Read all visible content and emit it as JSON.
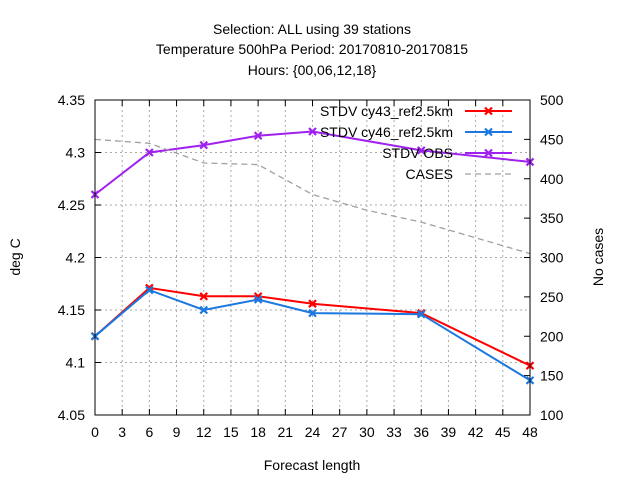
{
  "chart_data": {
    "type": "line",
    "title_lines": [
      "Selection: ALL using    39 stations",
      "Temperature 500hPa   Period: 20170810-20170815",
      "Hours: {00,06,12,18}"
    ],
    "xlabel": "Forecast length",
    "ylabel": "deg C",
    "y2label": "No cases",
    "xlim": [
      0,
      48
    ],
    "ylim": [
      4.05,
      4.35
    ],
    "y2lim": [
      100,
      500
    ],
    "x_ticks": [
      "0",
      "3",
      "6",
      "9",
      "12",
      "15",
      "18",
      "21",
      "24",
      "27",
      "30",
      "33",
      "36",
      "39",
      "42",
      "45",
      "48"
    ],
    "y_ticks": [
      "4.05",
      "4.1",
      "4.15",
      "4.2",
      "4.25",
      "4.3",
      "4.35"
    ],
    "y2_ticks": [
      "100",
      "150",
      "200",
      "250",
      "300",
      "350",
      "400",
      "450",
      "500"
    ],
    "grid": true,
    "legend_position": "top-right",
    "series": [
      {
        "name": "STDV cy43_ref2.5km",
        "color": "#ff0000",
        "axis": "y",
        "marker": "x",
        "x": [
          0,
          6,
          12,
          18,
          24,
          36,
          48
        ],
        "y": [
          4.125,
          4.171,
          4.163,
          4.163,
          4.156,
          4.147,
          4.097
        ]
      },
      {
        "name": "STDV cy46_ref2.5km",
        "color": "#1a78e0",
        "axis": "y",
        "marker": "x",
        "x": [
          0,
          6,
          12,
          18,
          24,
          36,
          48
        ],
        "y": [
          4.125,
          4.169,
          4.15,
          4.16,
          4.147,
          4.146,
          4.083
        ]
      },
      {
        "name": "STDV OBS",
        "color": "#a020f0",
        "axis": "y",
        "marker": "x",
        "x": [
          0,
          6,
          12,
          18,
          24,
          36,
          48
        ],
        "y": [
          4.26,
          4.3,
          4.307,
          4.316,
          4.32,
          4.302,
          4.291
        ]
      },
      {
        "name": "CASES",
        "color": "#a0a0a0",
        "axis": "y2",
        "marker": "none",
        "dashed": true,
        "x": [
          0,
          6,
          12,
          18,
          24,
          30,
          36,
          42,
          48
        ],
        "y": [
          450,
          445,
          420,
          418,
          380,
          360,
          345,
          325,
          305
        ]
      }
    ]
  }
}
